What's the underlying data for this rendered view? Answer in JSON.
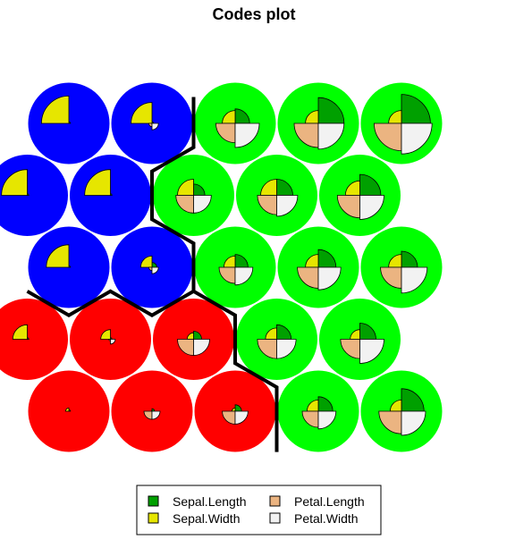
{
  "chart_data": {
    "type": "som-codes",
    "title": "Codes plot",
    "grid": {
      "rows": 5,
      "cols": 5,
      "topology": "hexagonal"
    },
    "variables": [
      "Sepal.Length",
      "Sepal.Width",
      "Petal.Length",
      "Petal.Width"
    ],
    "variable_colors": {
      "Sepal.Length": "#00a000",
      "Sepal.Width": "#e6e600",
      "Petal.Length": "#ebb481",
      "Petal.Width": "#f2f2f2"
    },
    "cluster_colors": {
      "blue": "#0000ff",
      "green": "#00ff00",
      "red": "#ff0000"
    },
    "units": [
      {
        "row": 0,
        "col": 0,
        "cluster": "red",
        "values": [
          0.05,
          0.1,
          0.0,
          0.0
        ]
      },
      {
        "row": 0,
        "col": 1,
        "cluster": "red",
        "values": [
          0.08,
          0.02,
          0.25,
          0.25
        ]
      },
      {
        "row": 0,
        "col": 2,
        "cluster": "red",
        "values": [
          0.2,
          0.1,
          0.4,
          0.4
        ]
      },
      {
        "row": 0,
        "col": 3,
        "cluster": "green",
        "values": [
          0.45,
          0.35,
          0.5,
          0.55
        ]
      },
      {
        "row": 0,
        "col": 4,
        "cluster": "green",
        "values": [
          0.7,
          0.35,
          0.7,
          0.75
        ]
      },
      {
        "row": 1,
        "col": 0,
        "cluster": "red",
        "values": [
          0.05,
          0.45,
          0.0,
          0.0
        ]
      },
      {
        "row": 1,
        "col": 1,
        "cluster": "red",
        "values": [
          0.05,
          0.3,
          0.05,
          0.15
        ]
      },
      {
        "row": 1,
        "col": 2,
        "cluster": "red",
        "values": [
          0.25,
          0.2,
          0.5,
          0.5
        ]
      },
      {
        "row": 1,
        "col": 3,
        "cluster": "green",
        "values": [
          0.45,
          0.35,
          0.6,
          0.6
        ]
      },
      {
        "row": 1,
        "col": 4,
        "cluster": "green",
        "values": [
          0.5,
          0.3,
          0.6,
          0.75
        ]
      },
      {
        "row": 2,
        "col": 0,
        "cluster": "blue",
        "values": [
          0.05,
          0.7,
          0.0,
          0.0
        ]
      },
      {
        "row": 2,
        "col": 1,
        "cluster": "blue",
        "values": [
          0.15,
          0.35,
          0.1,
          0.2
        ]
      },
      {
        "row": 2,
        "col": 2,
        "cluster": "green",
        "values": [
          0.4,
          0.35,
          0.5,
          0.55
        ]
      },
      {
        "row": 2,
        "col": 3,
        "cluster": "green",
        "values": [
          0.55,
          0.4,
          0.65,
          0.7
        ]
      },
      {
        "row": 2,
        "col": 4,
        "cluster": "green",
        "values": [
          0.5,
          0.4,
          0.65,
          0.8
        ]
      },
      {
        "row": 3,
        "col": 0,
        "cluster": "blue",
        "values": [
          0.05,
          0.8,
          0.0,
          0.0
        ]
      },
      {
        "row": 3,
        "col": 1,
        "cluster": "blue",
        "values": [
          0.05,
          0.8,
          0.0,
          0.0
        ]
      },
      {
        "row": 3,
        "col": 2,
        "cluster": "green",
        "values": [
          0.35,
          0.5,
          0.55,
          0.55
        ]
      },
      {
        "row": 3,
        "col": 3,
        "cluster": "green",
        "values": [
          0.5,
          0.5,
          0.6,
          0.65
        ]
      },
      {
        "row": 3,
        "col": 4,
        "cluster": "green",
        "values": [
          0.65,
          0.45,
          0.7,
          0.75
        ]
      },
      {
        "row": 4,
        "col": 0,
        "cluster": "blue",
        "values": [
          0.05,
          0.85,
          0.0,
          0.0
        ]
      },
      {
        "row": 4,
        "col": 1,
        "cluster": "blue",
        "values": [
          0.05,
          0.65,
          0.1,
          0.2
        ]
      },
      {
        "row": 4,
        "col": 2,
        "cluster": "green",
        "values": [
          0.45,
          0.4,
          0.6,
          0.75
        ]
      },
      {
        "row": 4,
        "col": 3,
        "cluster": "green",
        "values": [
          0.8,
          0.4,
          0.75,
          0.8
        ]
      },
      {
        "row": 4,
        "col": 4,
        "cluster": "green",
        "values": [
          0.9,
          0.4,
          0.85,
          0.95
        ]
      }
    ],
    "legend": {
      "position": "bottom",
      "entries": [
        {
          "label": "Sepal.Length",
          "color": "#00a000"
        },
        {
          "label": "Petal.Length",
          "color": "#ebb481"
        },
        {
          "label": "Sepal.Width",
          "color": "#e6e600"
        },
        {
          "label": "Petal.Width",
          "color": "#f2f2f2"
        }
      ]
    }
  }
}
